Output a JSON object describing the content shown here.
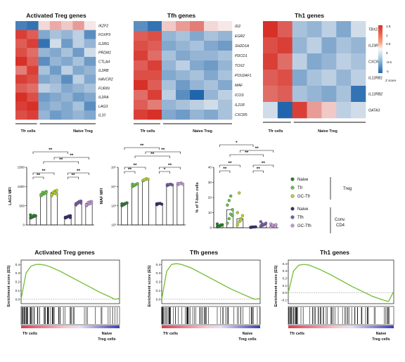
{
  "heatmaps": [
    {
      "title": "Activated Treg genes",
      "genes": [
        "IKZF2",
        "FOXP3",
        "IL2RG",
        "PRDM1",
        "CTLA4",
        "IL2RB",
        "HAVCR2",
        "FURIN",
        "IL2RA",
        "LAG3",
        "IL10"
      ],
      "values": [
        [
          -0.9,
          -1.0,
          0.2,
          0.5,
          0.3,
          0.6,
          0.1
        ],
        [
          1.2,
          1.0,
          -0.6,
          -0.4,
          -0.5,
          -0.3,
          -0.8
        ],
        [
          1.0,
          1.2,
          -1.0,
          -0.2,
          -0.7,
          -0.3,
          -0.5
        ],
        [
          1.1,
          0.9,
          -0.5,
          -0.6,
          -0.4,
          -0.7,
          -0.2
        ],
        [
          1.3,
          1.0,
          -0.8,
          -0.5,
          -0.6,
          -0.4,
          -0.7
        ],
        [
          0.8,
          1.2,
          -0.4,
          -0.7,
          -0.3,
          -0.6,
          -0.5
        ],
        [
          1.2,
          1.1,
          -0.6,
          -0.5,
          -0.8,
          -0.3,
          -0.6
        ],
        [
          1.0,
          0.9,
          -0.3,
          -0.4,
          -0.6,
          -0.5,
          -0.4
        ],
        [
          1.3,
          1.1,
          -0.7,
          -0.6,
          -0.5,
          -0.7,
          -0.6
        ],
        [
          1.2,
          1.3,
          -0.6,
          -0.5,
          -0.6,
          -0.4,
          -0.8
        ],
        [
          1.1,
          1.2,
          -0.5,
          -0.7,
          -0.6,
          -0.5,
          -0.6
        ]
      ],
      "groups": [
        "Tfr cells",
        "Naive Treg"
      ]
    },
    {
      "title": "Tfh genes",
      "genes": [
        "ID2",
        "EGR2",
        "SH2D1A",
        "PDCD1",
        "TOX2",
        "POU2AF1",
        "MAF",
        "ICOS",
        "IL21R",
        "CXCR5"
      ],
      "values": [
        [
          -0.8,
          -1.0,
          0.3,
          0.6,
          0.8,
          0.2,
          0.1
        ],
        [
          1.0,
          1.1,
          -0.5,
          -0.4,
          -0.6,
          -0.4,
          -0.5
        ],
        [
          1.1,
          1.0,
          -0.6,
          -0.5,
          -0.4,
          -0.6,
          -0.7
        ],
        [
          1.2,
          0.9,
          -0.4,
          -0.6,
          -0.5,
          -0.5,
          -0.4
        ],
        [
          1.0,
          1.2,
          -0.5,
          -0.3,
          -0.6,
          -0.7,
          -0.5
        ],
        [
          1.1,
          1.1,
          -0.6,
          -0.5,
          -0.4,
          -0.6,
          -0.4
        ],
        [
          1.3,
          1.0,
          -0.4,
          -0.7,
          -0.5,
          -0.4,
          -0.6
        ],
        [
          0.9,
          1.2,
          -0.3,
          -0.8,
          -1.1,
          -0.5,
          -0.3
        ],
        [
          1.0,
          0.8,
          -0.5,
          -0.4,
          -0.3,
          -0.2,
          -0.4
        ],
        [
          1.2,
          1.3,
          -0.6,
          -0.7,
          -0.5,
          -0.6,
          -0.4
        ]
      ],
      "groups": [
        "Tfr cells",
        "Naive Treg"
      ]
    },
    {
      "title": "Th1 genes",
      "genes": [
        "TBX21",
        "IL23R",
        "CXCR3",
        "IL12RB1",
        "IL12RB2",
        "GATA3"
      ],
      "values": [
        [
          1.3,
          1.0,
          -0.4,
          -0.5,
          -0.3,
          -0.6,
          -0.2
        ],
        [
          1.1,
          1.2,
          -0.5,
          -0.3,
          -0.6,
          -0.4,
          -0.5
        ],
        [
          1.2,
          0.9,
          -0.3,
          -0.6,
          -0.5,
          -0.3,
          -0.4
        ],
        [
          1.0,
          1.1,
          -0.6,
          -0.4,
          -0.3,
          -0.5,
          -0.3
        ],
        [
          0.9,
          1.0,
          -0.4,
          -0.5,
          -0.6,
          -0.4,
          -1.0
        ],
        [
          -0.2,
          -1.1,
          1.2,
          0.6,
          0.3,
          -0.3,
          -0.2
        ]
      ],
      "groups": [
        "Tfr cells",
        "Naive Treg"
      ]
    }
  ],
  "colorbar": {
    "ticks": [
      "1.5",
      "1",
      "0.5",
      "0",
      "-0.5",
      "-1"
    ],
    "label": "Z score"
  },
  "chart_data": [
    {
      "type": "scatter",
      "ylabel": "LAG3 MFI",
      "yticks": [
        "1500",
        "1000",
        "500",
        "0"
      ],
      "ylim": [
        0,
        1500
      ],
      "groups": [
        {
          "name": "Naive Treg",
          "mean": 230,
          "points": [
            180,
            200,
            220,
            240,
            260,
            210,
            250,
            230
          ],
          "color": "#2e7d32"
        },
        {
          "name": "Tfr",
          "mean": 820,
          "points": [
            760,
            800,
            830,
            870,
            790,
            850,
            810,
            840
          ],
          "color": "#6abf4b"
        },
        {
          "name": "GC-Tfr",
          "mean": 840,
          "points": [
            760,
            820,
            880,
            900,
            790,
            850,
            830,
            800
          ],
          "color": "#b5d334"
        },
        {
          "name": "Naive CD4",
          "mean": 210,
          "points": [
            180,
            200,
            220,
            240,
            200,
            210,
            230,
            190
          ],
          "color": "#3a2c6e"
        },
        {
          "name": "Tfh",
          "mean": 580,
          "points": [
            520,
            560,
            600,
            620,
            540,
            580,
            610,
            570
          ],
          "color": "#7b5ea7"
        },
        {
          "name": "GC-Tfh",
          "mean": 560,
          "points": [
            500,
            540,
            600,
            610,
            520,
            580,
            550,
            570
          ],
          "color": "#c59bd8"
        }
      ],
      "significance": [
        "**",
        "**",
        "**",
        "**",
        "**",
        "**",
        "**"
      ]
    },
    {
      "type": "scatter",
      "ylabel": "MAF MFI",
      "yticks": [
        "10⁵",
        "10⁴",
        "10³",
        "10²"
      ],
      "ylim": [
        2,
        5
      ],
      "groups": [
        {
          "name": "Naive Treg",
          "mean": 3.1,
          "points": [
            3.0,
            3.05,
            3.1,
            3.15,
            3.1,
            3.08,
            3.12
          ],
          "color": "#2e7d32"
        },
        {
          "name": "Tfr",
          "mean": 4.1,
          "points": [
            4.0,
            4.05,
            4.1,
            4.15,
            4.12,
            4.08
          ],
          "color": "#6abf4b"
        },
        {
          "name": "GC-Tfr",
          "mean": 4.35,
          "points": [
            4.3,
            4.35,
            4.4,
            4.38,
            4.32,
            4.36
          ],
          "color": "#b5d334"
        },
        {
          "name": "Naive CD4",
          "mean": 3.1,
          "points": [
            3.05,
            3.1,
            3.12,
            3.08,
            3.1,
            3.11
          ],
          "color": "#3a2c6e"
        },
        {
          "name": "Tfh",
          "mean": 4.1,
          "points": [
            4.05,
            4.1,
            4.12,
            4.08,
            4.1,
            4.09
          ],
          "color": "#7b5ea7"
        },
        {
          "name": "GC-Tfh",
          "mean": 4.15,
          "points": [
            4.1,
            4.15,
            4.18,
            4.12,
            4.16,
            4.14
          ],
          "color": "#c59bd8"
        }
      ],
      "significance": [
        "**",
        "**",
        "**",
        "**",
        "*",
        "**",
        "**"
      ]
    },
    {
      "type": "scatter",
      "ylabel": "% of T-bet+ cells",
      "yticks": [
        "40",
        "30",
        "20",
        "10",
        "0"
      ],
      "ylim": [
        0,
        40
      ],
      "groups": [
        {
          "name": "Naive Treg",
          "mean": 1.5,
          "points": [
            0.5,
            1,
            1.5,
            2,
            2.5,
            1,
            1.8
          ],
          "color": "#2e7d32"
        },
        {
          "name": "Tfr",
          "mean": 12,
          "points": [
            3,
            6,
            9,
            12,
            15,
            18,
            21,
            8
          ],
          "color": "#6abf4b"
        },
        {
          "name": "GC-Tfr",
          "mean": 6,
          "points": [
            2,
            4,
            6,
            8,
            10,
            23,
            5
          ],
          "color": "#b5d334"
        },
        {
          "name": "Naive CD4",
          "mean": 0.5,
          "points": [
            0.2,
            0.4,
            0.5,
            0.6,
            0.3,
            0.5
          ],
          "color": "#3a2c6e"
        },
        {
          "name": "Tfh",
          "mean": 2,
          "points": [
            1,
            1.5,
            2,
            3,
            4,
            2.5
          ],
          "color": "#7b5ea7"
        },
        {
          "name": "GC-Tfh",
          "mean": 1.5,
          "points": [
            0.5,
            1,
            1.5,
            2,
            2.5,
            1.8
          ],
          "color": "#c59bd8"
        }
      ],
      "significance": [
        "**",
        "**",
        "**",
        "**",
        "**",
        "**",
        "*"
      ]
    },
    {
      "type": "line",
      "title": "Activated Treg genes",
      "ylabel": "Enrichment score (ES)",
      "yticks": [
        "0.4",
        "0.3",
        "0.2",
        "0.1",
        "0.0"
      ],
      "ylim": [
        -0.05,
        0.45
      ],
      "x": [
        0,
        0.05,
        0.1,
        0.15,
        0.2,
        0.25,
        0.3,
        0.4,
        0.5,
        0.6,
        0.7,
        0.8,
        0.9,
        0.95,
        1
      ],
      "y": [
        0,
        0.3,
        0.38,
        0.4,
        0.4,
        0.39,
        0.37,
        0.32,
        0.26,
        0.2,
        0.14,
        0.08,
        0.03,
        0.0,
        0.01
      ],
      "xlabel_left": "Tfr cells",
      "xlabel_right": "Naive Treg cells"
    },
    {
      "type": "line",
      "title": "Tfh genes",
      "ylabel": "Enrichment score (ES)",
      "yticks": [
        "0.4",
        "0.3",
        "0.2",
        "0.1",
        "0.0"
      ],
      "ylim": [
        -0.05,
        0.45
      ],
      "x": [
        0,
        0.05,
        0.1,
        0.15,
        0.2,
        0.3,
        0.4,
        0.5,
        0.6,
        0.7,
        0.8,
        0.9,
        0.95,
        1
      ],
      "y": [
        0,
        0.32,
        0.4,
        0.41,
        0.4,
        0.36,
        0.3,
        0.24,
        0.18,
        0.12,
        0.07,
        0.02,
        0.0,
        0.01
      ],
      "xlabel_left": "Tfr cells",
      "xlabel_right": "Naive Treg cells"
    },
    {
      "type": "line",
      "title": "Th1 genes",
      "ylabel": "Enrichment score (ES)",
      "yticks": [
        "0.4",
        "0.3",
        "0.2",
        "0.1",
        "0.0",
        "-0.1"
      ],
      "ylim": [
        -0.15,
        0.45
      ],
      "x": [
        0,
        0.05,
        0.1,
        0.15,
        0.2,
        0.3,
        0.4,
        0.5,
        0.6,
        0.7,
        0.8,
        0.9,
        0.95,
        1
      ],
      "y": [
        0,
        0.3,
        0.38,
        0.39,
        0.38,
        0.32,
        0.25,
        0.17,
        0.09,
        0.02,
        -0.05,
        -0.1,
        -0.12,
        0.02
      ],
      "xlabel_left": "Tfr cells",
      "xlabel_right": "Naive Treg cells"
    }
  ],
  "legend": {
    "items": [
      {
        "label": "Naive",
        "color": "#2e7d32"
      },
      {
        "label": "Tfr",
        "color": "#6abf4b"
      },
      {
        "label": "GC-Tfr",
        "color": "#b5d334"
      },
      {
        "label": "Naive",
        "color": "#3a2c6e"
      },
      {
        "label": "Tfh",
        "color": "#7b5ea7"
      },
      {
        "label": "GC-Tfh",
        "color": "#c59bd8"
      }
    ],
    "group_treg": "Treg",
    "group_conv_line1": "Conv.",
    "group_conv_line2": "CD4"
  }
}
